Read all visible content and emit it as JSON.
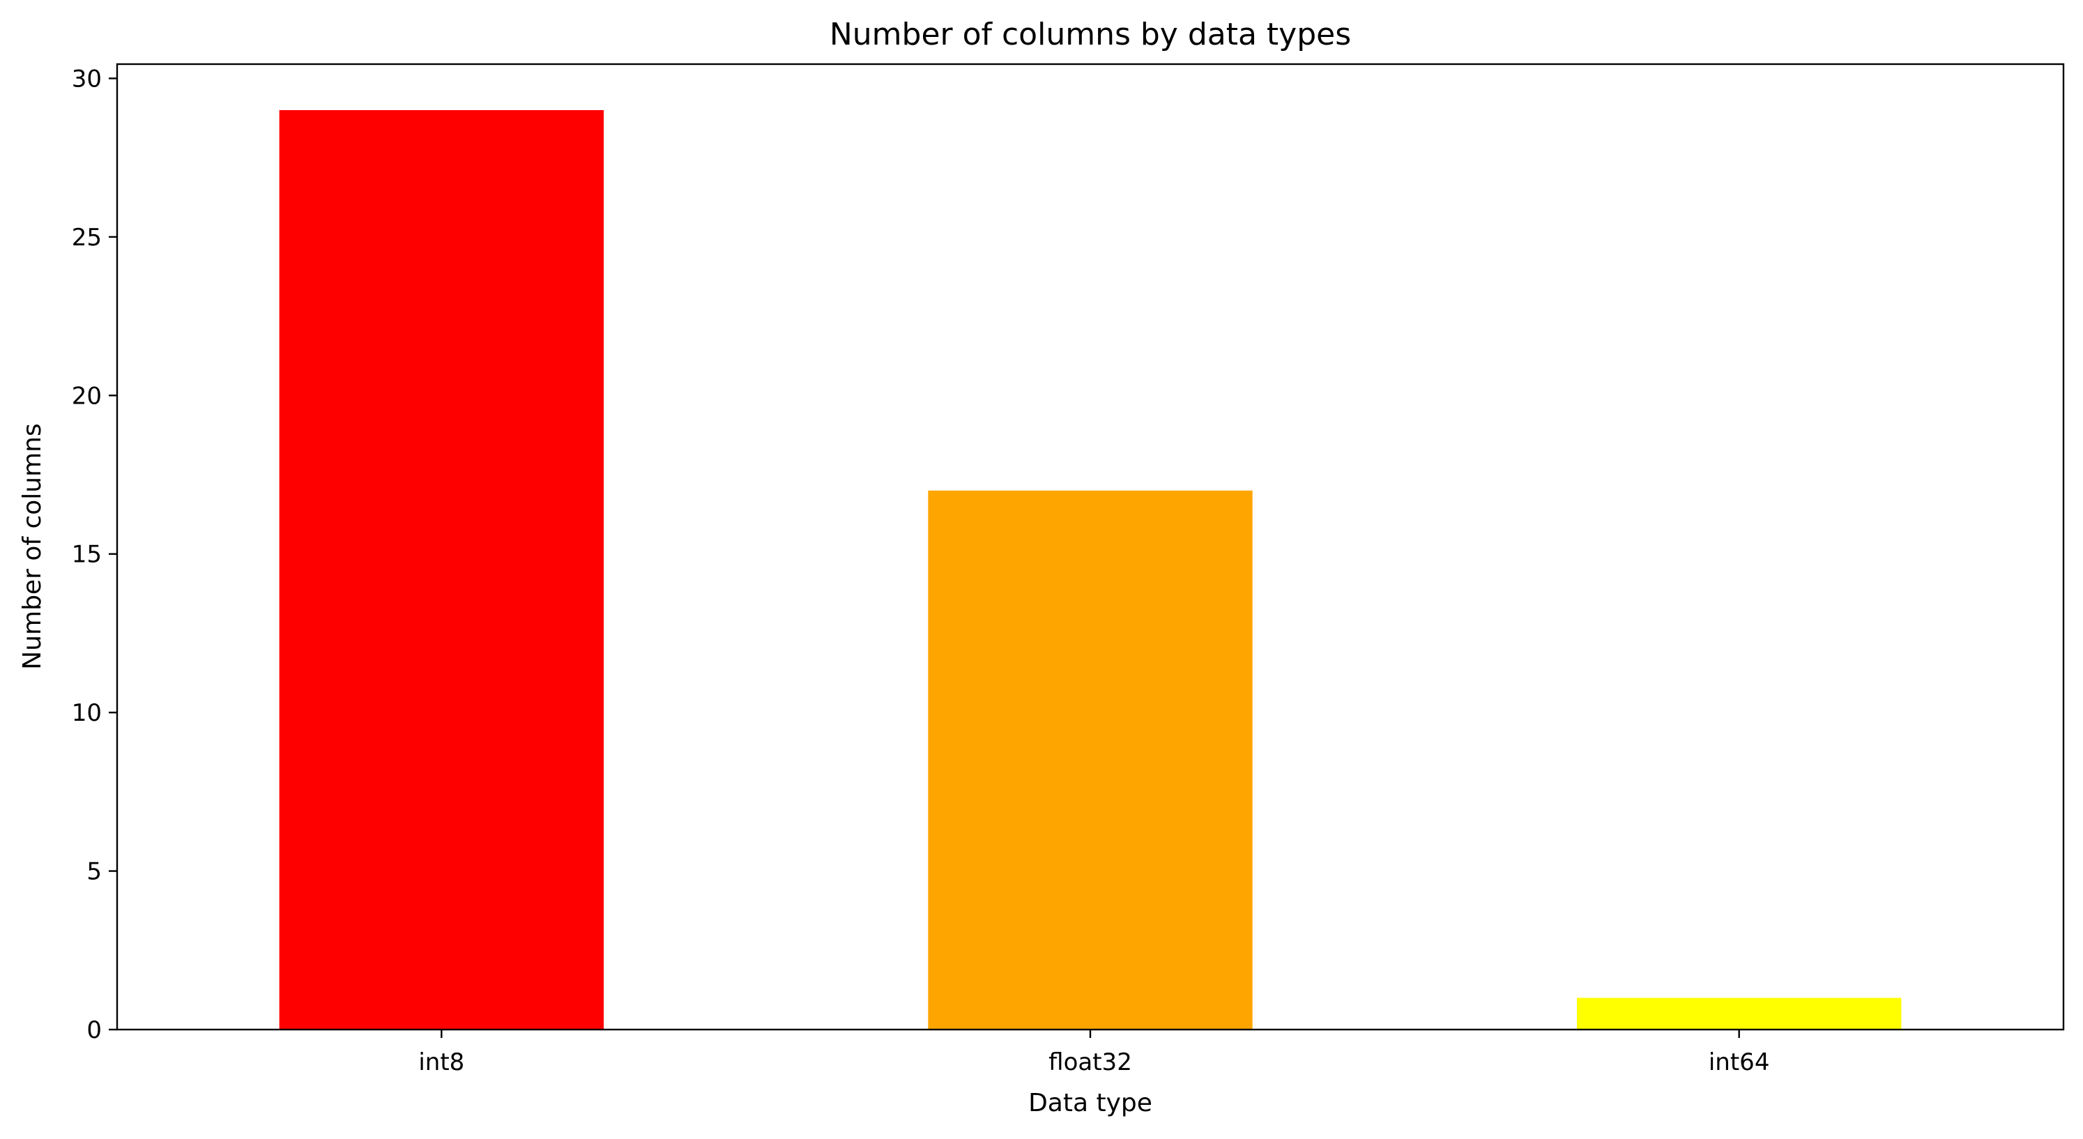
{
  "chart_data": {
    "type": "bar",
    "title": "Number of columns by data types",
    "xlabel": "Data type",
    "ylabel": "Number of columns",
    "categories": [
      "int8",
      "float32",
      "int64"
    ],
    "values": [
      29,
      17,
      1
    ],
    "colors": [
      "#ff0000",
      "#ffa500",
      "#ffff00"
    ],
    "ylim": [
      0,
      30.45
    ],
    "yticks": [
      0,
      5,
      10,
      15,
      20,
      25,
      30
    ],
    "grid": false,
    "legend": "none"
  }
}
